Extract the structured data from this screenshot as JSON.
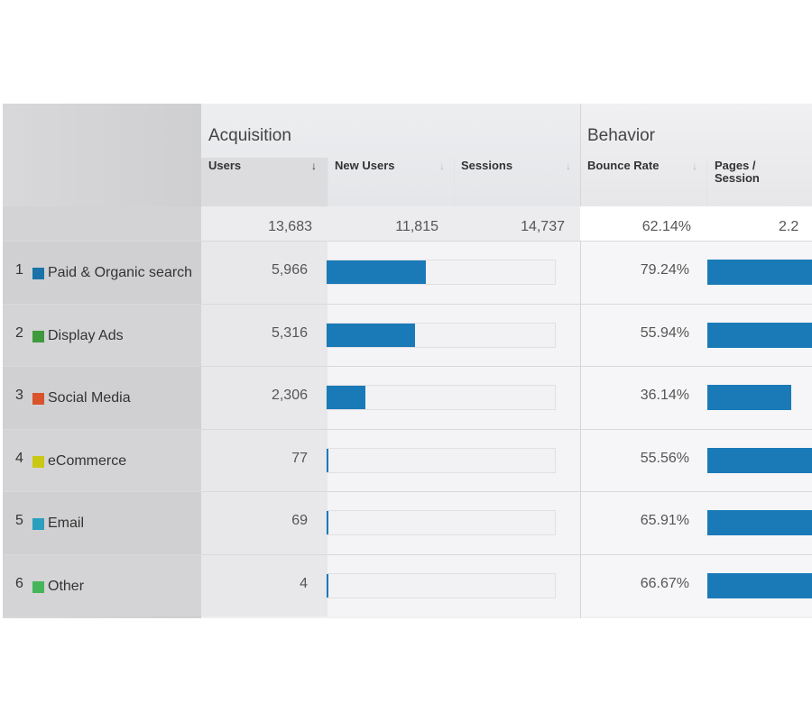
{
  "acquisition_title": "Acquisition",
  "behavior_title": "Behavior",
  "columns": {
    "users": "Users",
    "new_users": "New Users",
    "sessions": "Sessions",
    "bounce_rate": "Bounce Rate",
    "pages_session": "Pages / Session"
  },
  "totals": {
    "users": "13,683",
    "new_users": "11,815",
    "sessions": "14,737",
    "bounce_rate": "62.14%",
    "pages_session": "2.2"
  },
  "rows": [
    {
      "num": "1",
      "label": "Paid & Organic search",
      "color": "#1a73a8",
      "users": "5,966",
      "users_share": 0.436,
      "bounce": "79.24%",
      "pages_share": 1.0
    },
    {
      "num": "2",
      "label": "Display Ads",
      "color": "#3e9a3c",
      "users": "5,316",
      "users_share": 0.3885,
      "bounce": "55.94%",
      "pages_share": 1.0
    },
    {
      "num": "3",
      "label": "Social Media",
      "color": "#d9532b",
      "users": "2,306",
      "users_share": 0.1685,
      "bounce": "36.14%",
      "pages_share": 0.8
    },
    {
      "num": "4",
      "label": "eCommerce",
      "color": "#c9c814",
      "users": "77",
      "users_share": 0.0056,
      "bounce": "55.56%",
      "pages_share": 1.0
    },
    {
      "num": "5",
      "label": "Email",
      "color": "#2a9fbe",
      "users": "69",
      "users_share": 0.005,
      "bounce": "65.91%",
      "pages_share": 1.0
    },
    {
      "num": "6",
      "label": "Other",
      "color": "#45b45a",
      "users": "4",
      "users_share": 0.0003,
      "bounce": "66.67%",
      "pages_share": 1.0
    }
  ]
}
